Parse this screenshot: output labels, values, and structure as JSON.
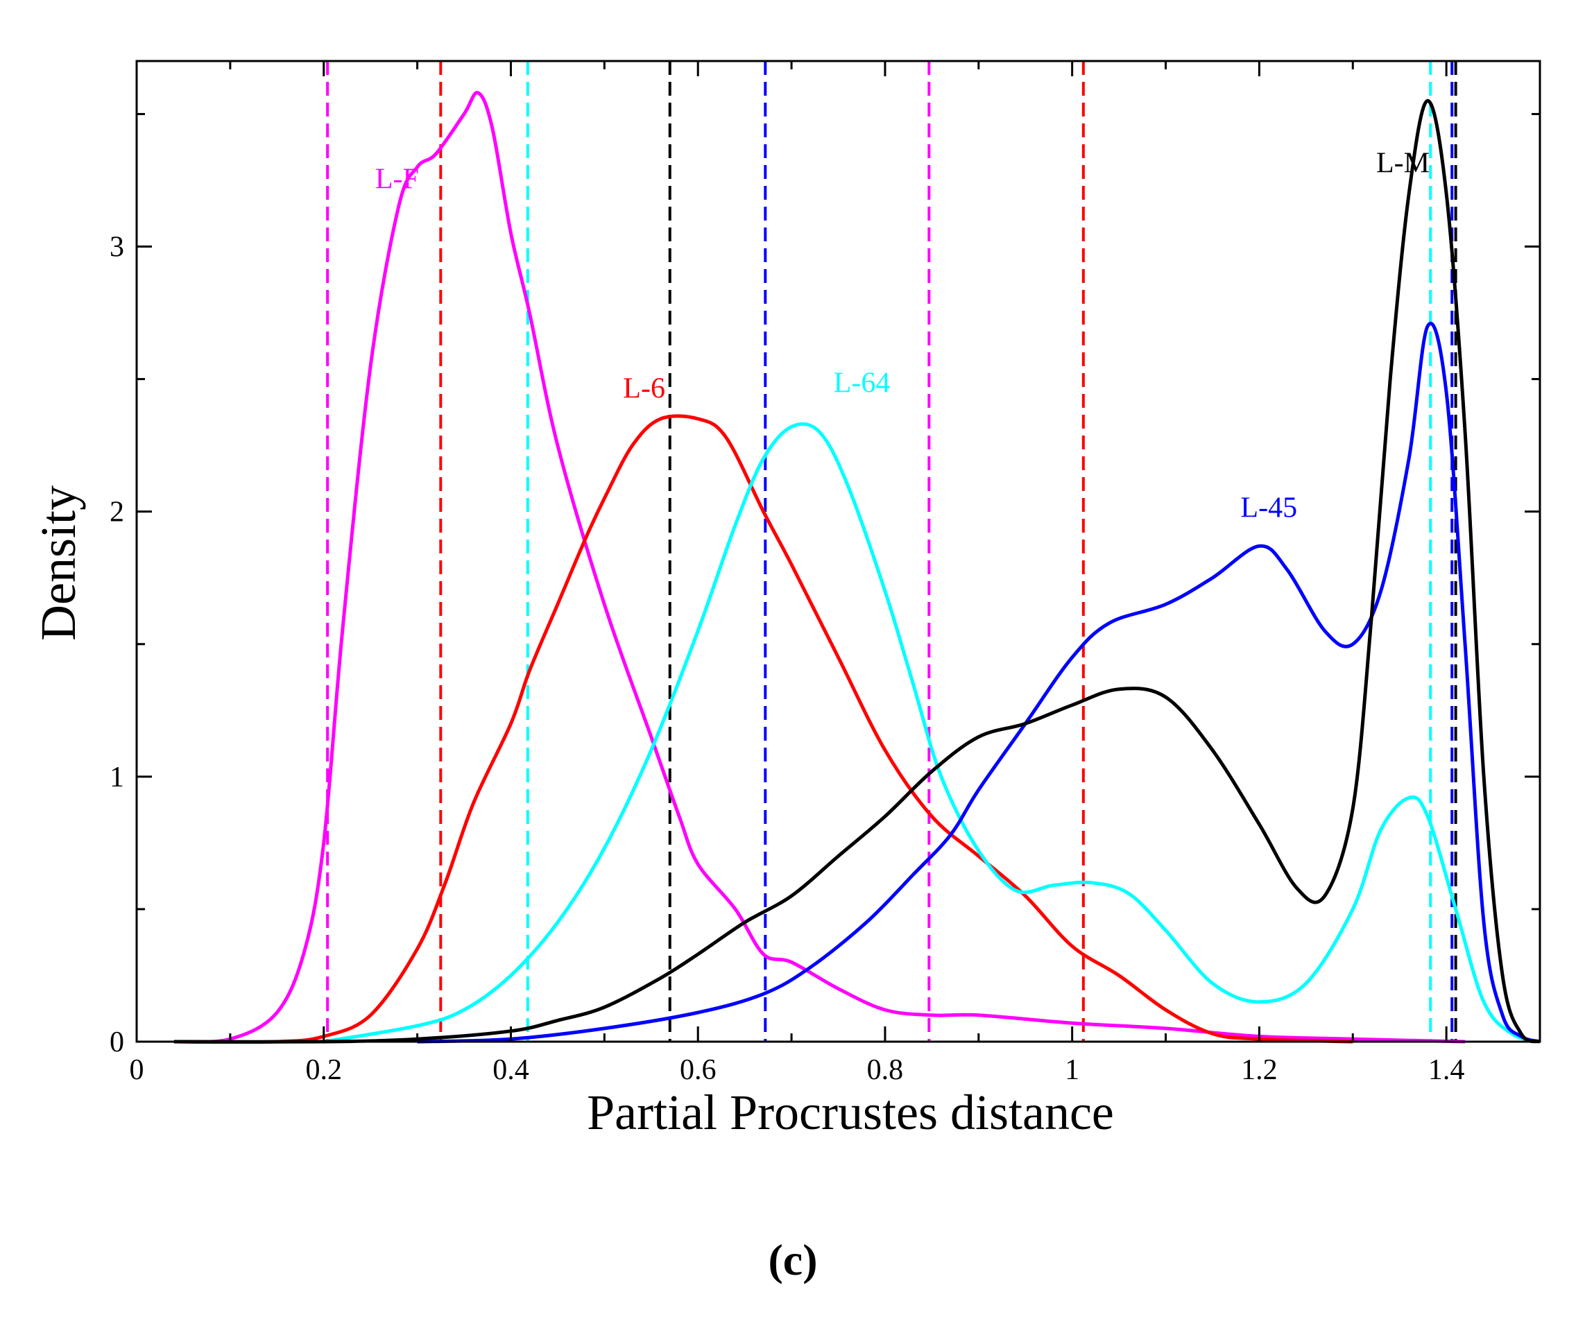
{
  "chart_data": {
    "type": "line",
    "title": "",
    "xlabel": "Partial Procrustes distance",
    "ylabel": "Density",
    "panel_label": "(c)",
    "xlim": [
      0,
      1.5
    ],
    "ylim": [
      0,
      3.7
    ],
    "x_ticks": [
      0,
      0.2,
      0.4,
      0.6,
      0.8,
      1,
      1.2,
      1.4
    ],
    "x_tick_labels": [
      "0",
      "0.2",
      "0.4",
      "0.6",
      "0.8",
      "1",
      "1.2",
      "1.4"
    ],
    "y_ticks": [
      0,
      1,
      2,
      3
    ],
    "y_tick_labels": [
      "0",
      "1",
      "2",
      "3"
    ],
    "grid": false,
    "series": [
      {
        "name": "L-F",
        "color": "#ff00ff",
        "label_at": [
          0.255,
          3.22
        ],
        "points": [
          [
            0.04,
            0
          ],
          [
            0.1,
            0.01
          ],
          [
            0.15,
            0.11
          ],
          [
            0.18,
            0.35
          ],
          [
            0.2,
            0.75
          ],
          [
            0.22,
            1.55
          ],
          [
            0.25,
            2.55
          ],
          [
            0.28,
            3.15
          ],
          [
            0.3,
            3.3
          ],
          [
            0.32,
            3.35
          ],
          [
            0.35,
            3.5
          ],
          [
            0.365,
            3.58
          ],
          [
            0.38,
            3.45
          ],
          [
            0.4,
            3.05
          ],
          [
            0.42,
            2.75
          ],
          [
            0.45,
            2.25
          ],
          [
            0.5,
            1.65
          ],
          [
            0.55,
            1.15
          ],
          [
            0.58,
            0.85
          ],
          [
            0.6,
            0.67
          ],
          [
            0.64,
            0.5
          ],
          [
            0.67,
            0.33
          ],
          [
            0.7,
            0.3
          ],
          [
            0.75,
            0.2
          ],
          [
            0.8,
            0.12
          ],
          [
            0.85,
            0.1
          ],
          [
            0.9,
            0.1
          ],
          [
            1.0,
            0.07
          ],
          [
            1.1,
            0.05
          ],
          [
            1.2,
            0.02
          ],
          [
            1.3,
            0.01
          ],
          [
            1.42,
            0
          ]
        ]
      },
      {
        "name": "L-6",
        "color": "#ff0000",
        "label_at": [
          0.52,
          2.43
        ],
        "points": [
          [
            0.04,
            0
          ],
          [
            0.15,
            0
          ],
          [
            0.2,
            0.02
          ],
          [
            0.25,
            0.1
          ],
          [
            0.3,
            0.35
          ],
          [
            0.33,
            0.6
          ],
          [
            0.36,
            0.9
          ],
          [
            0.4,
            1.2
          ],
          [
            0.42,
            1.4
          ],
          [
            0.45,
            1.65
          ],
          [
            0.48,
            1.9
          ],
          [
            0.5,
            2.05
          ],
          [
            0.53,
            2.25
          ],
          [
            0.56,
            2.35
          ],
          [
            0.6,
            2.35
          ],
          [
            0.63,
            2.28
          ],
          [
            0.67,
            2.0
          ],
          [
            0.7,
            1.8
          ],
          [
            0.75,
            1.45
          ],
          [
            0.8,
            1.1
          ],
          [
            0.85,
            0.85
          ],
          [
            0.9,
            0.7
          ],
          [
            0.95,
            0.55
          ],
          [
            1.0,
            0.36
          ],
          [
            1.05,
            0.25
          ],
          [
            1.1,
            0.12
          ],
          [
            1.15,
            0.03
          ],
          [
            1.2,
            0.01
          ],
          [
            1.3,
            0
          ]
        ]
      },
      {
        "name": "L-64",
        "color": "#00ffff",
        "label_at": [
          0.745,
          2.45
        ],
        "points": [
          [
            0.2,
            0
          ],
          [
            0.3,
            0.06
          ],
          [
            0.35,
            0.12
          ],
          [
            0.4,
            0.25
          ],
          [
            0.45,
            0.45
          ],
          [
            0.5,
            0.73
          ],
          [
            0.55,
            1.1
          ],
          [
            0.6,
            1.55
          ],
          [
            0.64,
            1.95
          ],
          [
            0.67,
            2.2
          ],
          [
            0.7,
            2.32
          ],
          [
            0.73,
            2.3
          ],
          [
            0.76,
            2.1
          ],
          [
            0.8,
            1.7
          ],
          [
            0.83,
            1.35
          ],
          [
            0.86,
            1.0
          ],
          [
            0.9,
            0.72
          ],
          [
            0.94,
            0.57
          ],
          [
            0.98,
            0.59
          ],
          [
            1.02,
            0.6
          ],
          [
            1.06,
            0.56
          ],
          [
            1.1,
            0.42
          ],
          [
            1.15,
            0.22
          ],
          [
            1.2,
            0.15
          ],
          [
            1.25,
            0.22
          ],
          [
            1.3,
            0.5
          ],
          [
            1.33,
            0.8
          ],
          [
            1.36,
            0.92
          ],
          [
            1.38,
            0.85
          ],
          [
            1.41,
            0.5
          ],
          [
            1.44,
            0.15
          ],
          [
            1.47,
            0.03
          ],
          [
            1.5,
            0
          ]
        ]
      },
      {
        "name": "L-45",
        "color": "#0000ff",
        "label_at": [
          1.18,
          1.98
        ],
        "points": [
          [
            0.3,
            0
          ],
          [
            0.4,
            0.01
          ],
          [
            0.5,
            0.05
          ],
          [
            0.6,
            0.11
          ],
          [
            0.67,
            0.18
          ],
          [
            0.72,
            0.28
          ],
          [
            0.78,
            0.45
          ],
          [
            0.83,
            0.63
          ],
          [
            0.87,
            0.78
          ],
          [
            0.9,
            0.95
          ],
          [
            0.95,
            1.2
          ],
          [
            1.0,
            1.45
          ],
          [
            1.04,
            1.58
          ],
          [
            1.1,
            1.65
          ],
          [
            1.15,
            1.75
          ],
          [
            1.2,
            1.87
          ],
          [
            1.23,
            1.78
          ],
          [
            1.27,
            1.55
          ],
          [
            1.3,
            1.5
          ],
          [
            1.33,
            1.7
          ],
          [
            1.36,
            2.2
          ],
          [
            1.38,
            2.7
          ],
          [
            1.4,
            2.45
          ],
          [
            1.42,
            1.5
          ],
          [
            1.44,
            0.45
          ],
          [
            1.46,
            0.1
          ],
          [
            1.48,
            0.02
          ],
          [
            1.5,
            0
          ]
        ]
      },
      {
        "name": "L-M",
        "color": "#000000",
        "label_at": [
          1.325,
          3.28
        ],
        "points": [
          [
            0.04,
            0
          ],
          [
            0.2,
            0
          ],
          [
            0.3,
            0.01
          ],
          [
            0.4,
            0.04
          ],
          [
            0.45,
            0.08
          ],
          [
            0.5,
            0.13
          ],
          [
            0.56,
            0.24
          ],
          [
            0.6,
            0.33
          ],
          [
            0.65,
            0.45
          ],
          [
            0.7,
            0.55
          ],
          [
            0.75,
            0.7
          ],
          [
            0.8,
            0.85
          ],
          [
            0.85,
            1.02
          ],
          [
            0.9,
            1.15
          ],
          [
            0.95,
            1.2
          ],
          [
            1.0,
            1.27
          ],
          [
            1.05,
            1.33
          ],
          [
            1.1,
            1.3
          ],
          [
            1.15,
            1.1
          ],
          [
            1.2,
            0.82
          ],
          [
            1.24,
            0.58
          ],
          [
            1.27,
            0.55
          ],
          [
            1.3,
            0.88
          ],
          [
            1.32,
            1.6
          ],
          [
            1.34,
            2.5
          ],
          [
            1.36,
            3.2
          ],
          [
            1.38,
            3.55
          ],
          [
            1.4,
            3.2
          ],
          [
            1.42,
            2.3
          ],
          [
            1.44,
            1.0
          ],
          [
            1.46,
            0.25
          ],
          [
            1.48,
            0.03
          ],
          [
            1.5,
            0
          ]
        ]
      }
    ],
    "reference_lines": [
      {
        "x": 0.204,
        "color": "#ff00ff"
      },
      {
        "x": 0.325,
        "color": "#ff0000"
      },
      {
        "x": 0.418,
        "color": "#00ffff"
      },
      {
        "x": 0.57,
        "color": "#000000"
      },
      {
        "x": 0.672,
        "color": "#0000ff"
      },
      {
        "x": 0.847,
        "color": "#ff00ff"
      },
      {
        "x": 1.012,
        "color": "#ff0000"
      },
      {
        "x": 1.383,
        "color": "#00ffff"
      },
      {
        "x": 1.406,
        "color": "#0000ff"
      },
      {
        "x": 1.41,
        "color": "#000000"
      }
    ]
  }
}
